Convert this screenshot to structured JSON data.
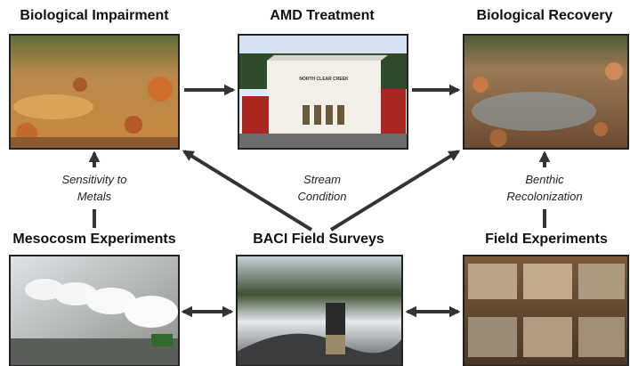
{
  "nodes": [
    {
      "label": "Biological Impairment"
    },
    {
      "label": "AMD Treatment",
      "sign": "NORTH CLEAR CREEK"
    },
    {
      "label": "Biological Recovery"
    },
    {
      "label": "Mesocosm Experiments"
    },
    {
      "label": "BACI Field Surveys"
    },
    {
      "label": "Field Experiments"
    }
  ],
  "edge_labels": [
    {
      "lines": [
        "Sensitivity to",
        "Metals"
      ]
    },
    {
      "lines": [
        "Stream",
        "Condition"
      ]
    },
    {
      "lines": [
        "Benthic",
        "Recolonization"
      ]
    }
  ]
}
